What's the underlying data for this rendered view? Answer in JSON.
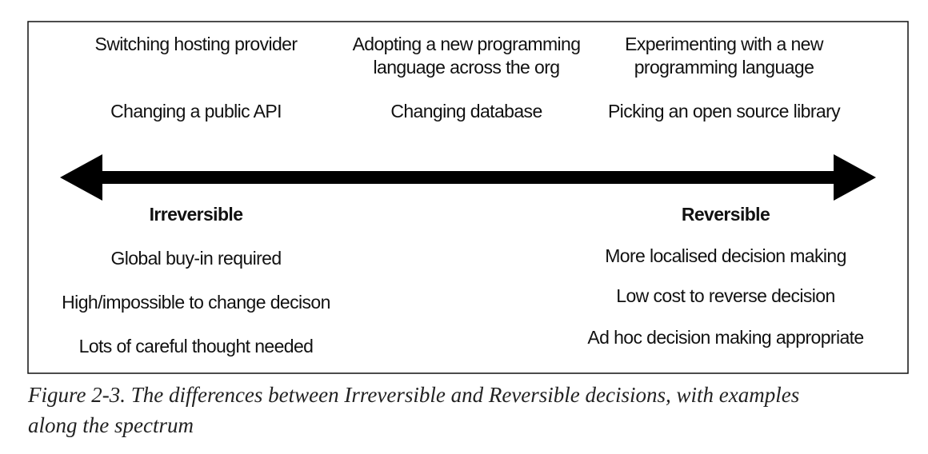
{
  "examples": {
    "columns": [
      {
        "items": [
          [
            "Switching hosting provider"
          ],
          [
            "Changing a public API"
          ]
        ]
      },
      {
        "items": [
          [
            "Adopting a new programming",
            "language across the org"
          ],
          [
            "Changing database"
          ]
        ]
      },
      {
        "items": [
          [
            "Experimenting with a new",
            "programming language"
          ],
          [
            "Picking an open source library"
          ]
        ]
      }
    ]
  },
  "irreversible": {
    "title": "Irreversible",
    "traits": [
      "Global buy-in required",
      "High/impossible to change decison",
      "Lots of careful thought needed"
    ]
  },
  "reversible": {
    "title": "Reversible",
    "traits": [
      "More localised decision making",
      "Low cost to reverse decision",
      "Ad hoc decision making appropriate"
    ]
  },
  "caption": {
    "lines": [
      "Figure 2-3. The differences between Irreversible and Reversible decisions, with examples",
      "along the spectrum"
    ]
  }
}
